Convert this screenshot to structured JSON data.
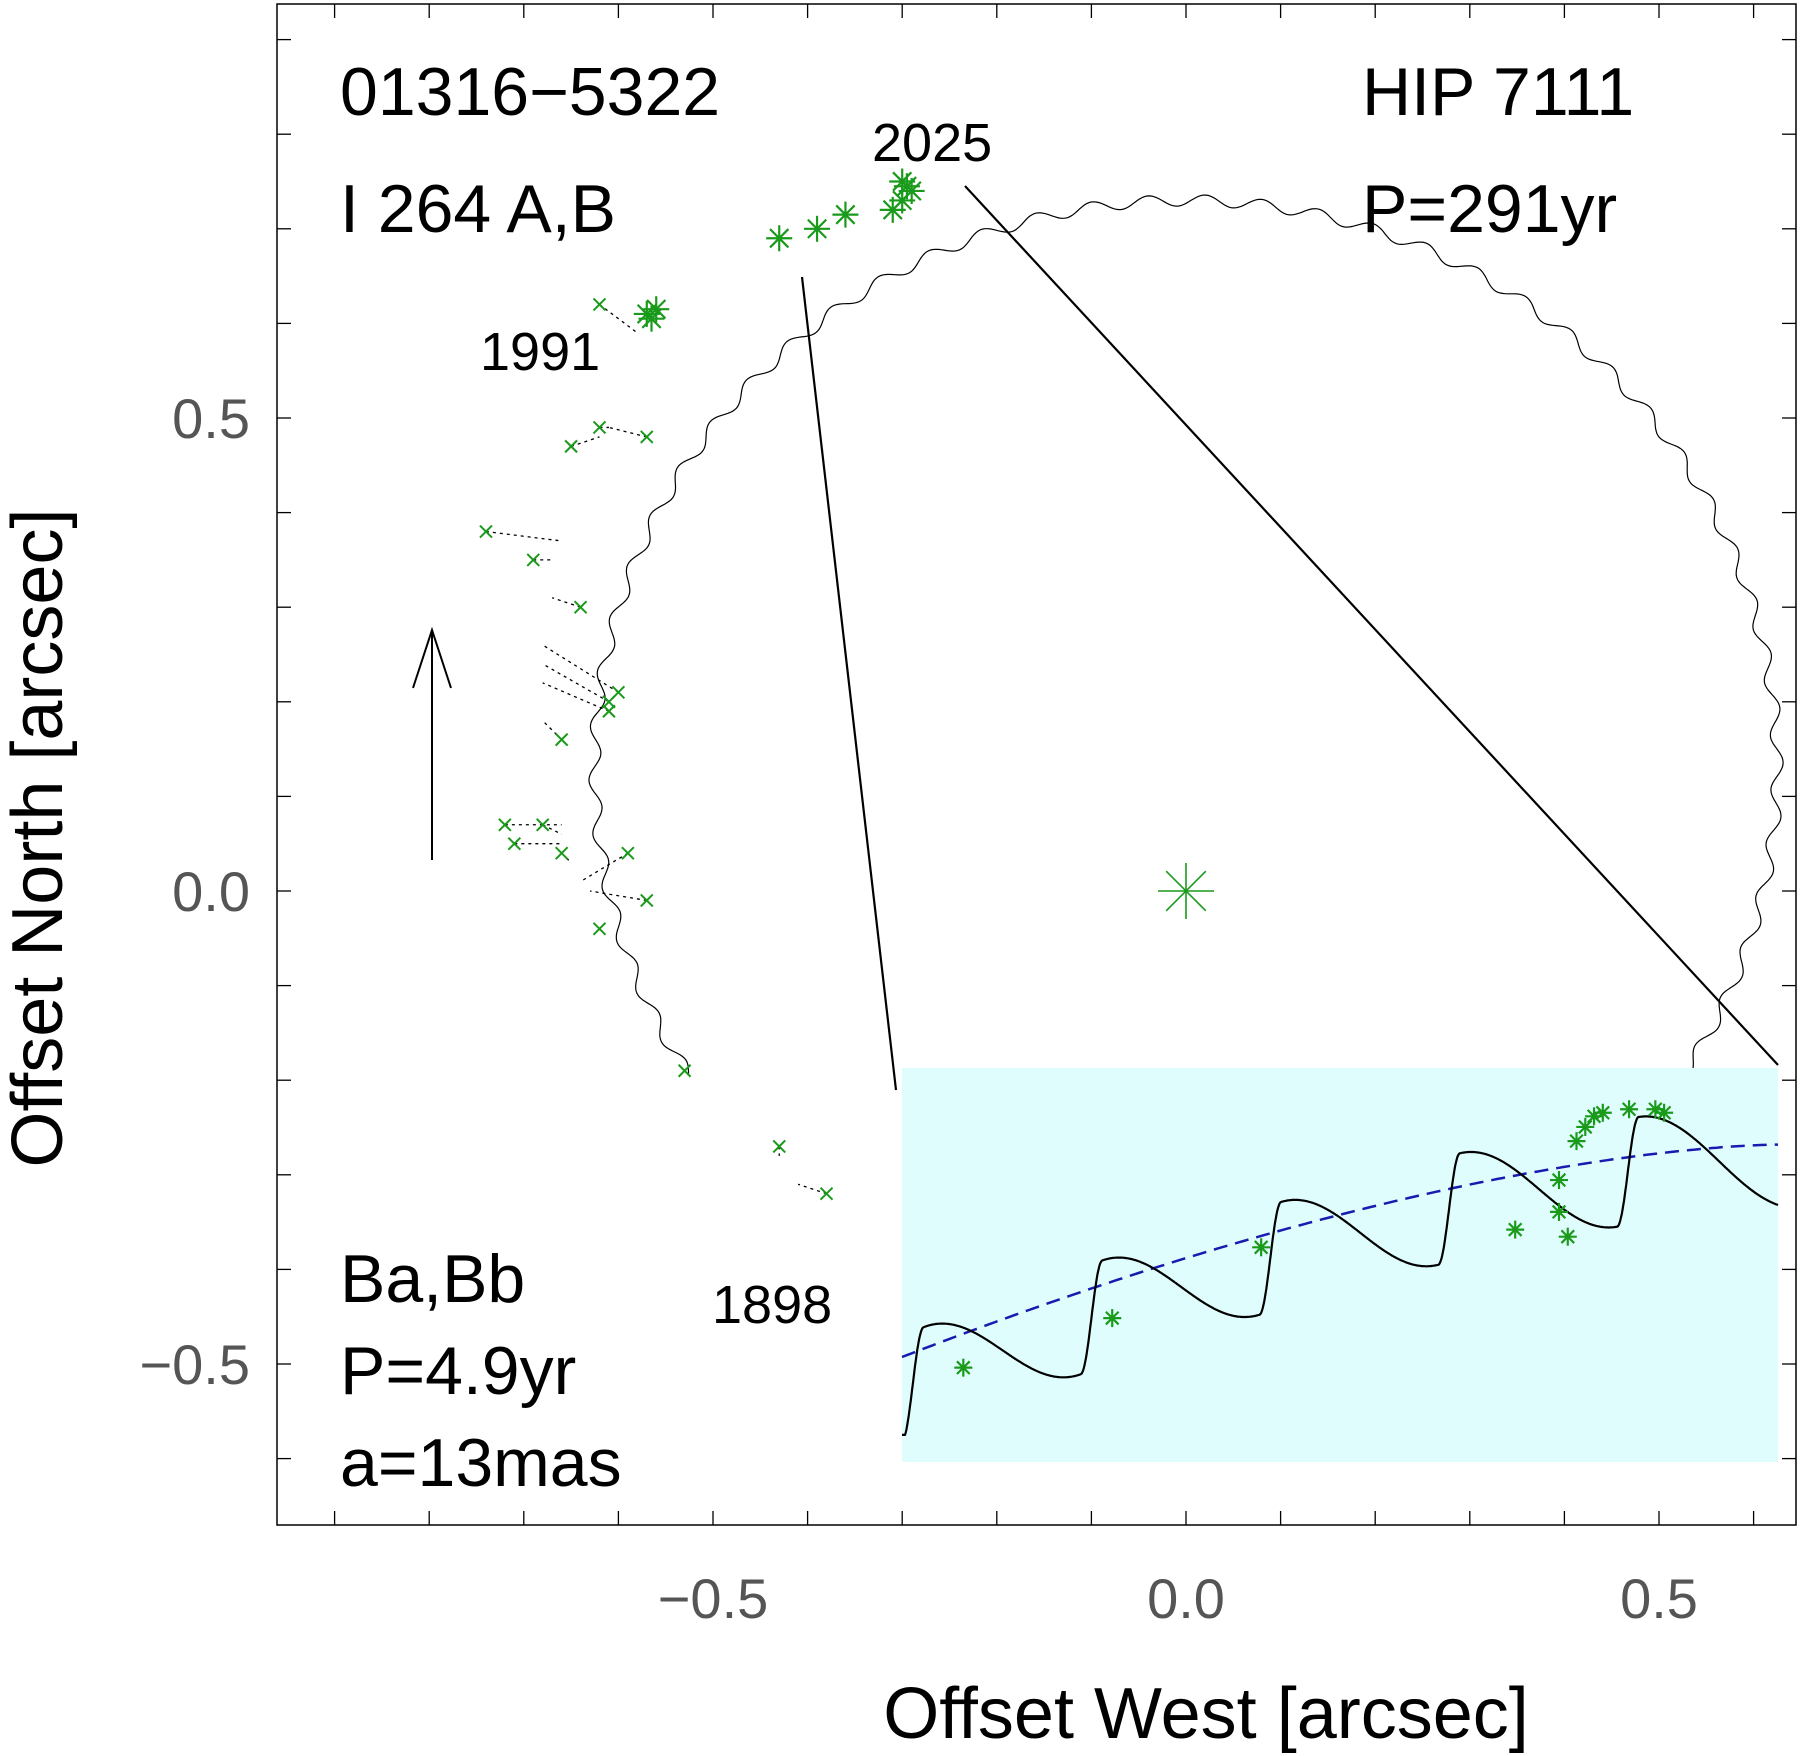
{
  "chart_data": {
    "type": "scatter",
    "title": "",
    "xlabel": "Offset West [arcsec]",
    "ylabel": "Offset North [arcsec]",
    "xlim": [
      -0.95,
      0.65
    ],
    "ylim": [
      -0.67,
      0.94
    ],
    "xticks": [
      -0.5,
      0.0,
      0.5
    ],
    "xtick_labels": [
      "−0.5",
      "0.0",
      "0.5"
    ],
    "yticks": [
      -0.5,
      0.0,
      0.5
    ],
    "ytick_labels": [
      "−0.5",
      "0.0",
      "0.5"
    ],
    "grid": false,
    "annotations": {
      "id_line1": "01316−5322",
      "id_line2": "I 264 A,B",
      "hip": "HIP 7111",
      "period": "P=291yr",
      "inner_line1": "Ba,Bb",
      "inner_line2": "P=4.9yr",
      "inner_line3": "a=13mas",
      "epoch_1898": "1898",
      "epoch_1991": "1991",
      "epoch_2025": "2025"
    },
    "primary": {
      "x": 0.0,
      "y": 0.0
    },
    "orbit": {
      "center": [
        0.0,
        0.13
      ],
      "semi_axis_x": 0.625,
      "semi_axis_y": 0.6,
      "wobble_amplitude": 0.006,
      "wobble_cycles": 60
    },
    "microns_measurements": [
      {
        "x": -0.62,
        "y": 0.62,
        "fx": -0.58,
        "fy": 0.59
      },
      {
        "x": -0.65,
        "y": 0.47,
        "fx": -0.62,
        "fy": 0.48
      },
      {
        "x": -0.62,
        "y": 0.49,
        "fx": -0.61,
        "fy": 0.49
      },
      {
        "x": -0.57,
        "y": 0.48,
        "fx": -0.61,
        "fy": 0.49
      },
      {
        "x": -0.74,
        "y": 0.38,
        "fx": -0.66,
        "fy": 0.37
      },
      {
        "x": -0.69,
        "y": 0.35,
        "fx": -0.67,
        "fy": 0.35
      },
      {
        "x": -0.64,
        "y": 0.3,
        "fx": -0.67,
        "fy": 0.31
      },
      {
        "x": -0.6,
        "y": 0.21,
        "fx": -0.68,
        "fy": 0.26
      },
      {
        "x": -0.61,
        "y": 0.2,
        "fx": -0.68,
        "fy": 0.24
      },
      {
        "x": -0.61,
        "y": 0.19,
        "fx": -0.68,
        "fy": 0.22
      },
      {
        "x": -0.66,
        "y": 0.16,
        "fx": -0.68,
        "fy": 0.18
      },
      {
        "x": -0.72,
        "y": 0.07,
        "fx": -0.66,
        "fy": 0.07
      },
      {
        "x": -0.71,
        "y": 0.05,
        "fx": -0.66,
        "fy": 0.05
      },
      {
        "x": -0.68,
        "y": 0.07,
        "fx": -0.66,
        "fy": 0.06
      },
      {
        "x": -0.66,
        "y": 0.04,
        "fx": -0.65,
        "fy": 0.03
      },
      {
        "x": -0.59,
        "y": 0.04,
        "fx": -0.64,
        "fy": 0.01
      },
      {
        "x": -0.57,
        "y": -0.01,
        "fx": -0.63,
        "fy": 0.0
      },
      {
        "x": -0.62,
        "y": -0.04,
        "fx": -0.62,
        "fy": -0.04
      },
      {
        "x": -0.53,
        "y": -0.19,
        "fx": -0.53,
        "fy": -0.19
      },
      {
        "x": -0.43,
        "y": -0.27,
        "fx": -0.43,
        "fy": -0.28
      },
      {
        "x": -0.38,
        "y": -0.32,
        "fx": -0.41,
        "fy": -0.31
      }
    ],
    "speckle_measurements": [
      {
        "x": -0.565,
        "y": 0.605
      },
      {
        "x": -0.56,
        "y": 0.615
      },
      {
        "x": -0.57,
        "y": 0.61
      },
      {
        "x": -0.43,
        "y": 0.69
      },
      {
        "x": -0.39,
        "y": 0.7
      },
      {
        "x": -0.36,
        "y": 0.715
      },
      {
        "x": -0.31,
        "y": 0.72
      },
      {
        "x": -0.3,
        "y": 0.75
      },
      {
        "x": -0.295,
        "y": 0.745
      },
      {
        "x": -0.3,
        "y": 0.73
      },
      {
        "x": -0.29,
        "y": 0.74
      }
    ],
    "inset": {
      "outer_orbit_dashed": [
        [
          0.0,
          0.0
        ],
        [
          0.25,
          0.32
        ],
        [
          0.5,
          0.55
        ],
        [
          0.75,
          0.72
        ],
        [
          1.0,
          0.84
        ]
      ],
      "wobbly_orbit": {
        "cycles": 4.9,
        "amplitude": 0.3
      },
      "measurements": [
        {
          "t": 0.07,
          "v": 0.21
        },
        {
          "t": 0.24,
          "v": 0.35
        },
        {
          "t": 0.41,
          "v": 0.55
        },
        {
          "t": 0.7,
          "v": 0.6
        },
        {
          "t": 0.75,
          "v": 0.65
        },
        {
          "t": 0.75,
          "v": 0.74
        },
        {
          "t": 0.76,
          "v": 0.58
        },
        {
          "t": 0.77,
          "v": 0.85
        },
        {
          "t": 0.78,
          "v": 0.89
        },
        {
          "t": 0.79,
          "v": 0.92
        },
        {
          "t": 0.8,
          "v": 0.93
        },
        {
          "t": 0.83,
          "v": 0.94
        },
        {
          "t": 0.86,
          "v": 0.94
        },
        {
          "t": 0.87,
          "v": 0.93
        }
      ]
    },
    "colors": {
      "orbit": "#000000",
      "measurement": "#1a9a1a",
      "inset_background": "#e0fdfd",
      "dashed_orbit": "#1a1ab0",
      "tick_text": "#555555"
    }
  }
}
